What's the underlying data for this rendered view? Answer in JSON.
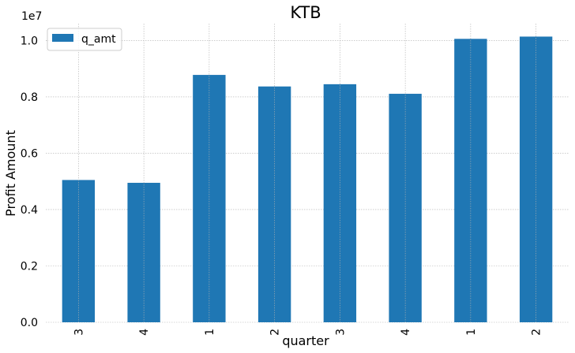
{
  "chart_data": {
    "type": "bar",
    "title": "KTB",
    "xlabel": "quarter",
    "ylabel": "Profit Amount",
    "y_scale_label": "1e7",
    "categories": [
      "3",
      "4",
      "1",
      "2",
      "3",
      "4",
      "1",
      "2"
    ],
    "series": [
      {
        "name": "q_amt",
        "color": "#1f77b4",
        "values": [
          5050000,
          4950000,
          8780000,
          8370000,
          8450000,
          8110000,
          10060000,
          10140000
        ]
      }
    ],
    "ylim": [
      0,
      10600000
    ],
    "yticks": [
      0,
      2000000,
      4000000,
      6000000,
      8000000,
      10000000
    ],
    "ytick_labels": [
      "0.0",
      "0.2",
      "0.4",
      "0.6",
      "0.8",
      "1.0"
    ],
    "grid": true,
    "legend_position": "top-left"
  }
}
